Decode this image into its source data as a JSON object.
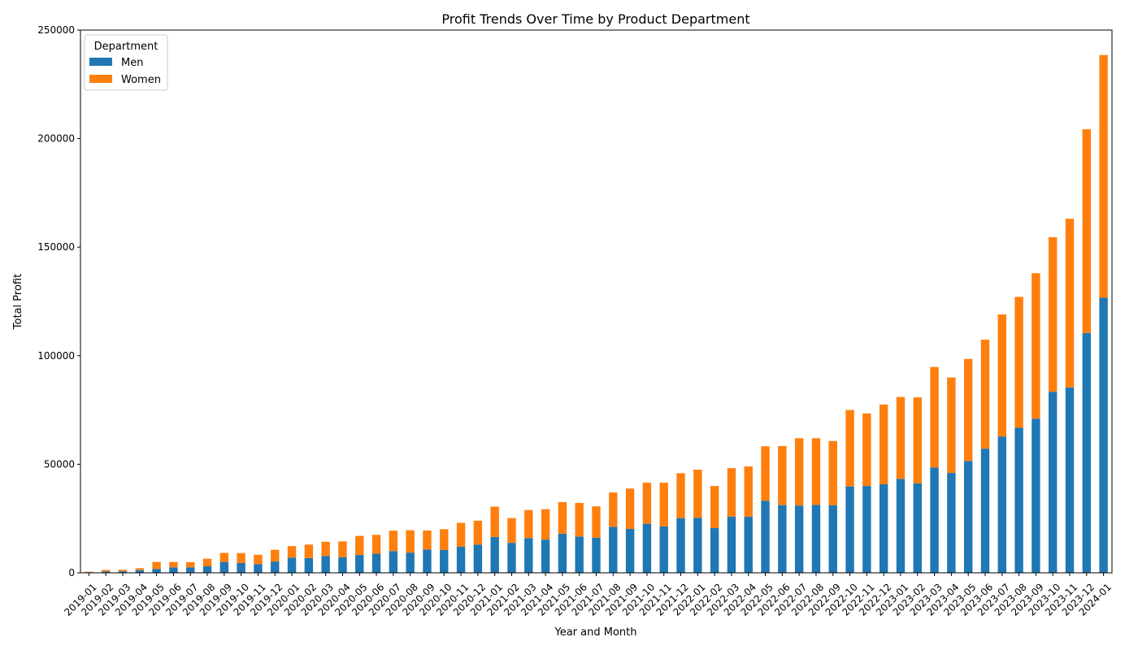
{
  "chart_data": {
    "type": "bar",
    "stacked": true,
    "title": "Profit Trends Over Time by Product Department",
    "xlabel": "Year and Month",
    "ylabel": "Total Profit",
    "ylim": [
      0,
      250000
    ],
    "yticks": [
      "0",
      "50000",
      "100000",
      "150000",
      "200000",
      "250000"
    ],
    "legend": {
      "title": "Department",
      "placement": "top-left"
    },
    "categories": [
      "2019-01",
      "2019-02",
      "2019-03",
      "2019-04",
      "2019-05",
      "2019-06",
      "2019-07",
      "2019-08",
      "2019-09",
      "2019-10",
      "2019-11",
      "2019-12",
      "2020-01",
      "2020-02",
      "2020-03",
      "2020-04",
      "2020-05",
      "2020-06",
      "2020-07",
      "2020-08",
      "2020-09",
      "2020-10",
      "2020-11",
      "2020-12",
      "2021-01",
      "2021-02",
      "2021-03",
      "2021-04",
      "2021-05",
      "2021-06",
      "2021-07",
      "2021-08",
      "2021-09",
      "2021-10",
      "2021-11",
      "2021-12",
      "2022-01",
      "2022-02",
      "2022-03",
      "2022-04",
      "2022-05",
      "2022-06",
      "2022-07",
      "2022-08",
      "2022-09",
      "2022-10",
      "2022-11",
      "2022-12",
      "2023-01",
      "2023-02",
      "2023-03",
      "2023-04",
      "2023-05",
      "2023-06",
      "2023-07",
      "2023-08",
      "2023-09",
      "2023-10",
      "2023-11",
      "2023-12",
      "2024-01"
    ],
    "series": [
      {
        "name": "Men",
        "color": "#1f77b4",
        "values": [
          300,
          600,
          700,
          1200,
          1800,
          2500,
          2500,
          3000,
          5000,
          4500,
          4000,
          5200,
          7000,
          6800,
          7700,
          7200,
          8200,
          8800,
          10000,
          9300,
          10700,
          10500,
          12000,
          13000,
          16500,
          13800,
          16000,
          15300,
          18000,
          16700,
          16200,
          21200,
          20200,
          22600,
          21400,
          25200,
          25300,
          20600,
          25900,
          25800,
          33200,
          31200,
          31000,
          31300,
          31100,
          39800,
          40000,
          40800,
          43300,
          41200,
          48500,
          46000,
          51500,
          57200,
          62800,
          66800,
          71000,
          83400,
          85400,
          110500,
          126700
        ]
      },
      {
        "name": "Women",
        "color": "#ff7f0e",
        "values": [
          200,
          700,
          700,
          900,
          3200,
          2500,
          2400,
          3500,
          4200,
          4600,
          4300,
          5400,
          5300,
          6200,
          6600,
          7300,
          8800,
          8700,
          9400,
          10300,
          8800,
          9600,
          11000,
          11000,
          14000,
          11400,
          12900,
          14000,
          14600,
          15500,
          14400,
          15800,
          18600,
          18900,
          20100,
          20700,
          22200,
          19400,
          22300,
          23200,
          25100,
          27200,
          31000,
          30700,
          29600,
          35200,
          33400,
          36700,
          37700,
          39600,
          46300,
          44000,
          47000,
          50200,
          56200,
          60300,
          67000,
          71200,
          77700,
          93800,
          111800
        ]
      }
    ]
  }
}
